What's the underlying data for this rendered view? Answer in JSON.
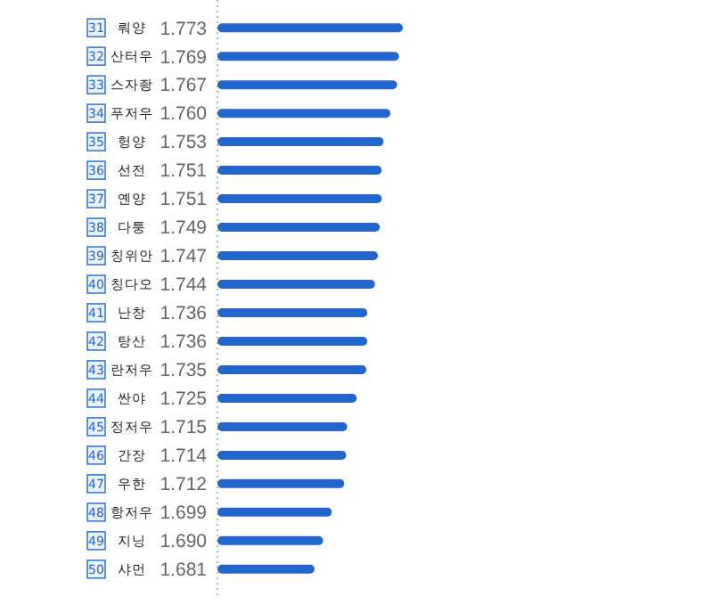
{
  "chart_data": {
    "type": "bar",
    "orientation": "horizontal",
    "categories": [
      "31 뤄양",
      "32 산터우",
      "33 스자좡",
      "34 푸저우",
      "35 헝양",
      "36 선전",
      "37 옌양",
      "38 다퉁",
      "39 칭위안",
      "40 칭다오",
      "41 난창",
      "42 탕산",
      "43 란저우",
      "44 싼야",
      "45 정저우",
      "46 간장",
      "47 우한",
      "48 항저우",
      "49 지닝",
      "50 샤먼"
    ],
    "values": [
      1.773,
      1.769,
      1.767,
      1.76,
      1.753,
      1.751,
      1.751,
      1.749,
      1.747,
      1.744,
      1.736,
      1.736,
      1.735,
      1.725,
      1.715,
      1.714,
      1.712,
      1.699,
      1.69,
      1.681
    ],
    "value_labels": [
      "1.773",
      "1.769",
      "1.767",
      "1.760",
      "1.753",
      "1.751",
      "1.751",
      "1.749",
      "1.747",
      "1.744",
      "1.736",
      "1.736",
      "1.735",
      "1.725",
      "1.715",
      "1.714",
      "1.712",
      "1.699",
      "1.690",
      "1.681"
    ],
    "color": "#2266cc",
    "xlim": [
      1.58,
      1.773
    ]
  }
}
